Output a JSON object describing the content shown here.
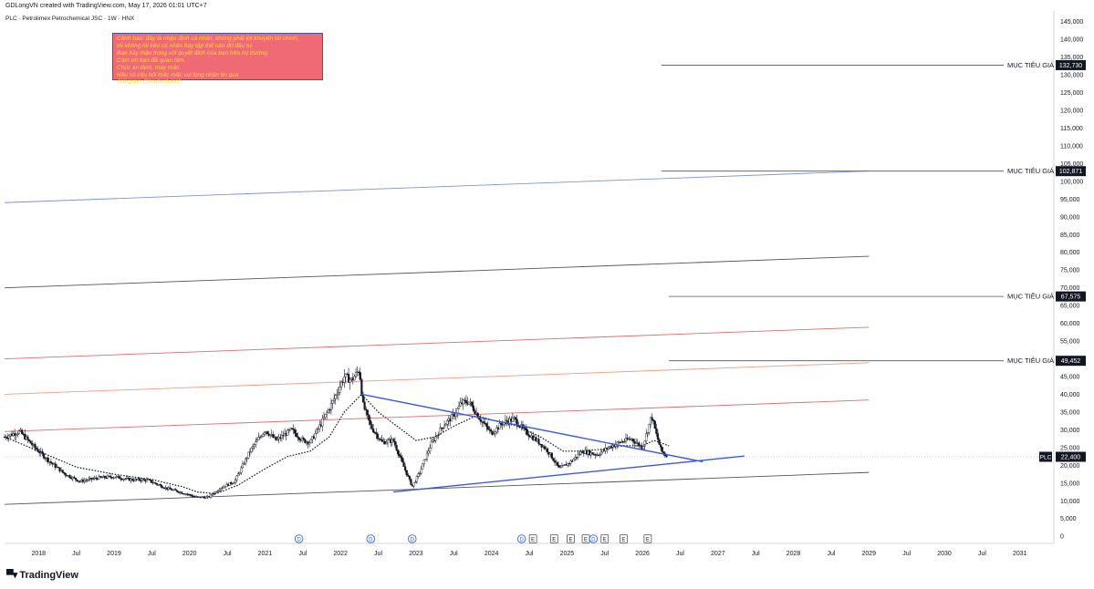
{
  "credit": "GDLongVN created with TradingView.com, May 17, 2026 01:01 UTC+7",
  "symbol_line": "PLC · Petrolimex Petrochemical JSC · 1W · HNX",
  "note_lines": [
    "Cảnh báo: đây là nhận định cá nhân, không phải lời khuyến tài chính,",
    "tôi không lôi kéo cá nhân hay tập thể nào đó đầu tư.",
    "Bạn hãy thận trọng với quyết định của bạn trên thị trường.",
    "Cảm ơn bạn đã quan tâm.",
    "Chúc an lành, may mắn.",
    "Nếu có câu hỏi thắc mắc vui lòng nhắn tin qua",
    "Telegram @traderdukich"
  ],
  "brand": "TradingView",
  "colors": {
    "note_bg": "#f06a76",
    "note_text": "#ffd92f",
    "trend_blue": "#3b5bdb",
    "channel_blue": "#7b93e0",
    "channel_red": "#e06b6b",
    "channel_orange": "#f29a84",
    "channel_dark": "#555555",
    "candle": "#131722"
  },
  "chart_data": {
    "type": "candlestick",
    "symbol": "PLC",
    "interval": "1W",
    "exchange": "HNX",
    "y_axis": {
      "ticks": [
        145000,
        140000,
        135000,
        130000,
        125000,
        120000,
        115000,
        110000,
        105000,
        100000,
        95000,
        90000,
        85000,
        80000,
        75000,
        70000,
        65000,
        60000,
        55000,
        50000,
        45000,
        40000,
        35000,
        30000,
        25000,
        20000,
        15000,
        10000,
        5000,
        0
      ],
      "tick_labels": [
        "145,000",
        "140,000",
        "135,000",
        "130,000",
        "125,000",
        "120,000",
        "115,000",
        "110,000",
        "105,000",
        "100,000",
        "95,000",
        "90,000",
        "85,000",
        "80,000",
        "75,000",
        "70,000",
        "65,000",
        "60,000",
        "55,000",
        "50,000",
        "45,000",
        "40,000",
        "35,000",
        "30,000",
        "25,000",
        "20,000",
        "15,000",
        "10,000",
        "5,000",
        "0"
      ],
      "range": [
        -2000,
        148000
      ]
    },
    "x_axis": {
      "range": [
        2017.55,
        2031.45
      ],
      "ticks": [
        {
          "x": 2018.0,
          "label": "2018"
        },
        {
          "x": 2018.5,
          "label": "Jul"
        },
        {
          "x": 2019.0,
          "label": "2019"
        },
        {
          "x": 2019.5,
          "label": "Jul"
        },
        {
          "x": 2020.0,
          "label": "2020"
        },
        {
          "x": 2020.5,
          "label": "Jul"
        },
        {
          "x": 2021.0,
          "label": "2021"
        },
        {
          "x": 2021.5,
          "label": "Jul"
        },
        {
          "x": 2022.0,
          "label": "2022"
        },
        {
          "x": 2022.5,
          "label": "Jul"
        },
        {
          "x": 2023.0,
          "label": "2023"
        },
        {
          "x": 2023.5,
          "label": "Jul"
        },
        {
          "x": 2024.0,
          "label": "2024"
        },
        {
          "x": 2024.5,
          "label": "Jul"
        },
        {
          "x": 2025.0,
          "label": "2025"
        },
        {
          "x": 2025.5,
          "label": "Jul"
        },
        {
          "x": 2026.0,
          "label": "2026"
        },
        {
          "x": 2026.5,
          "label": "Jul"
        },
        {
          "x": 2027.0,
          "label": "2027"
        },
        {
          "x": 2027.5,
          "label": "Jul"
        },
        {
          "x": 2028.0,
          "label": "2028"
        },
        {
          "x": 2028.5,
          "label": "Jul"
        },
        {
          "x": 2029.0,
          "label": "2029"
        },
        {
          "x": 2029.5,
          "label": "Jul"
        },
        {
          "x": 2030.0,
          "label": "2030"
        },
        {
          "x": 2030.5,
          "label": "Jul"
        },
        {
          "x": 2031.0,
          "label": "2031"
        }
      ]
    },
    "price_path": [
      [
        2017.55,
        28000
      ],
      [
        2017.75,
        29500
      ],
      [
        2017.95,
        25000
      ],
      [
        2018.15,
        21000
      ],
      [
        2018.35,
        17500
      ],
      [
        2018.55,
        15500
      ],
      [
        2018.8,
        16500
      ],
      [
        2019.0,
        16800
      ],
      [
        2019.2,
        16000
      ],
      [
        2019.45,
        15800
      ],
      [
        2019.7,
        13500
      ],
      [
        2019.95,
        12000
      ],
      [
        2020.1,
        11000
      ],
      [
        2020.25,
        11000
      ],
      [
        2020.4,
        13500
      ],
      [
        2020.6,
        15500
      ],
      [
        2020.8,
        24000
      ],
      [
        2021.0,
        30000
      ],
      [
        2021.15,
        27000
      ],
      [
        2021.35,
        30000
      ],
      [
        2021.5,
        27000
      ],
      [
        2021.6,
        26500
      ],
      [
        2021.75,
        32000
      ],
      [
        2021.9,
        38000
      ],
      [
        2022.05,
        45000
      ],
      [
        2022.15,
        44000
      ],
      [
        2022.25,
        47000
      ],
      [
        2022.3,
        37000
      ],
      [
        2022.4,
        31000
      ],
      [
        2022.55,
        26500
      ],
      [
        2022.7,
        27000
      ],
      [
        2022.85,
        19000
      ],
      [
        2022.95,
        14000
      ],
      [
        2023.05,
        18000
      ],
      [
        2023.2,
        26000
      ],
      [
        2023.35,
        31000
      ],
      [
        2023.5,
        34000
      ],
      [
        2023.6,
        37500
      ],
      [
        2023.7,
        38000
      ],
      [
        2023.85,
        33000
      ],
      [
        2024.0,
        29000
      ],
      [
        2024.15,
        32000
      ],
      [
        2024.3,
        33000
      ],
      [
        2024.45,
        29500
      ],
      [
        2024.6,
        27000
      ],
      [
        2024.75,
        24000
      ],
      [
        2024.9,
        19000
      ],
      [
        2025.05,
        21000
      ],
      [
        2025.2,
        24000
      ],
      [
        2025.4,
        23000
      ],
      [
        2025.55,
        25000
      ],
      [
        2025.7,
        26500
      ],
      [
        2025.85,
        27500
      ],
      [
        2026.0,
        25000
      ],
      [
        2026.07,
        30000
      ],
      [
        2026.12,
        34000
      ],
      [
        2026.18,
        29000
      ],
      [
        2026.25,
        24000
      ],
      [
        2026.33,
        22400
      ]
    ],
    "moving_average": [
      [
        2017.55,
        28000
      ],
      [
        2018.0,
        24000
      ],
      [
        2018.5,
        19500
      ],
      [
        2019.0,
        17500
      ],
      [
        2019.5,
        16000
      ],
      [
        2019.9,
        14000
      ],
      [
        2020.1,
        12500
      ],
      [
        2020.35,
        12000
      ],
      [
        2020.65,
        14500
      ],
      [
        2021.0,
        19000
      ],
      [
        2021.3,
        22500
      ],
      [
        2021.6,
        24000
      ],
      [
        2021.85,
        28000
      ],
      [
        2022.05,
        35000
      ],
      [
        2022.28,
        40000
      ],
      [
        2022.5,
        35000
      ],
      [
        2022.75,
        31000
      ],
      [
        2023.0,
        27000
      ],
      [
        2023.25,
        28000
      ],
      [
        2023.5,
        31000
      ],
      [
        2023.8,
        34000
      ],
      [
        2024.05,
        32500
      ],
      [
        2024.35,
        31000
      ],
      [
        2024.65,
        28000
      ],
      [
        2024.95,
        24000
      ],
      [
        2025.2,
        24000
      ],
      [
        2025.45,
        24500
      ],
      [
        2025.75,
        25500
      ],
      [
        2026.0,
        25500
      ],
      [
        2026.15,
        27000
      ],
      [
        2026.35,
        25500
      ]
    ],
    "trendlines": [
      {
        "name": "descending",
        "color": "#3b5bdb",
        "from": [
          2022.28,
          40000
        ],
        "to": [
          2026.8,
          21000
        ]
      },
      {
        "name": "ascending",
        "color": "#3b5bdb",
        "from": [
          2022.7,
          12500
        ],
        "to": [
          2027.35,
          22600
        ]
      }
    ],
    "channel_lines": [
      {
        "color": "#555555",
        "from": [
          2017.55,
          9000
        ],
        "to": [
          2029.0,
          18000
        ]
      },
      {
        "color": "#e06b6b",
        "from": [
          2017.55,
          29500
        ],
        "to": [
          2029.0,
          38400
        ]
      },
      {
        "color": "#f29a84",
        "from": [
          2017.55,
          40000
        ],
        "to": [
          2029.0,
          48900
        ]
      },
      {
        "color": "#e06b6b",
        "from": [
          2017.55,
          50000
        ],
        "to": [
          2029.0,
          58900
        ]
      },
      {
        "color": "#555555",
        "from": [
          2017.55,
          70000
        ],
        "to": [
          2029.0,
          78900
        ]
      },
      {
        "color": "#7b93e0",
        "from": [
          2017.55,
          94000
        ],
        "to": [
          2029.0,
          102900
        ]
      }
    ],
    "targets": [
      {
        "label": "MỤC TIÊU GIÁ",
        "price_label": "132,730",
        "value": 132730,
        "x_start": 2026.25
      },
      {
        "label": "MỤC TIÊU GIÁ",
        "price_label": "102,871",
        "value": 102871,
        "x_start": 2026.25
      },
      {
        "label": "MỤC TIÊU GIÁ",
        "price_label": "67,575",
        "value": 67575,
        "x_start": 2026.35
      },
      {
        "label": "MỤC TIÊU GIÁ",
        "price_label": "49,452",
        "value": 49452,
        "x_start": 2026.35
      }
    ],
    "last_price": {
      "label": "PLC",
      "value": 22400,
      "text": "22,400"
    },
    "event_markers": [
      {
        "x": 2021.45,
        "letter": "D"
      },
      {
        "x": 2022.4,
        "letter": "D"
      },
      {
        "x": 2022.95,
        "letter": "D"
      },
      {
        "x": 2024.4,
        "letter": "D"
      },
      {
        "x": 2024.55,
        "letter": "E"
      },
      {
        "x": 2024.83,
        "letter": "E"
      },
      {
        "x": 2025.05,
        "letter": "E"
      },
      {
        "x": 2025.25,
        "letter": "E"
      },
      {
        "x": 2025.35,
        "letter": "D"
      },
      {
        "x": 2025.5,
        "letter": "E"
      },
      {
        "x": 2025.75,
        "letter": "E"
      },
      {
        "x": 2026.07,
        "letter": "E"
      }
    ]
  }
}
